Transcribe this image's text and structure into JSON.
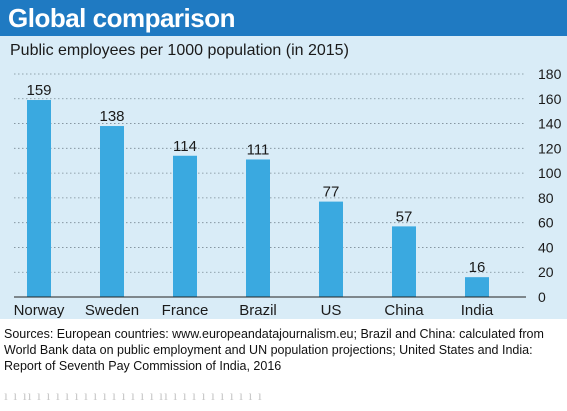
{
  "header": {
    "title": "Global comparison",
    "subtitle": "Public employees per 1000 population (in 2015)"
  },
  "footer": {
    "sources": "Sources: European countries: www.europeandatajournalism.eu; Brazil and China: calculated from World Bank data on public employment and UN population projections; United States and India: Report of Seventh Pay Commission of India, 2016"
  },
  "colors": {
    "title_bar": "#1f7ac2",
    "panel": "#d9ecf7",
    "bar": "#3aa9e0"
  },
  "chart_data": {
    "type": "bar",
    "title": "Global comparison",
    "subtitle": "Public employees per 1000 population (in 2015)",
    "categories": [
      "Norway",
      "Sweden",
      "France",
      "Brazil",
      "US",
      "China",
      "India"
    ],
    "values": [
      159,
      138,
      114,
      111,
      77,
      57,
      16
    ],
    "data_labels": [
      "159",
      "138",
      "114",
      "111",
      "77",
      "57",
      "16"
    ],
    "y_ticks": [
      "0",
      "20",
      "40",
      "60",
      "80",
      "100",
      "120",
      "140",
      "160",
      "180"
    ],
    "ylim": [
      0,
      180
    ],
    "y_axis_side": "right",
    "grid": "dotted horizontal"
  }
}
